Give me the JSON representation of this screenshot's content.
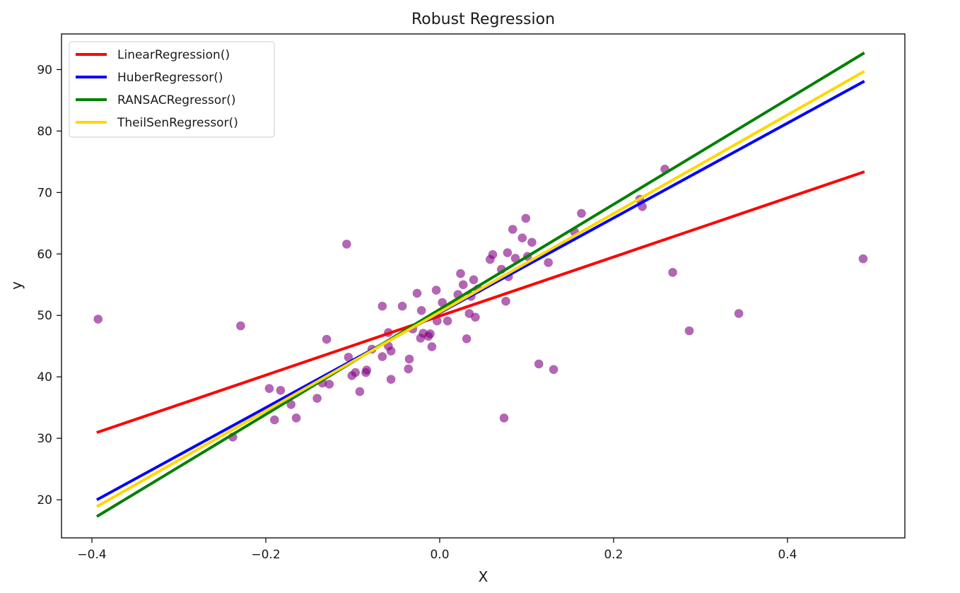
{
  "chart_data": {
    "type": "scatter",
    "title": "Robust Regression",
    "xlabel": "X",
    "ylabel": "y",
    "xlim": [
      -0.435,
      0.535
    ],
    "ylim": [
      13.8,
      95.8
    ],
    "xticks": [
      -0.4,
      -0.2,
      0.0,
      0.2,
      0.4
    ],
    "xtick_labels": [
      "−0.4",
      "−0.2",
      "0.0",
      "0.2",
      "0.4"
    ],
    "yticks": [
      20,
      30,
      40,
      50,
      60,
      70,
      80,
      90
    ],
    "ytick_labels": [
      "20",
      "30",
      "40",
      "50",
      "60",
      "70",
      "80",
      "90"
    ],
    "legend_position": "top-left",
    "scatter": {
      "color": "#800080",
      "opacity": 0.6,
      "points": [
        [
          -0.393,
          49.4
        ],
        [
          -0.229,
          48.3
        ],
        [
          -0.107,
          61.6
        ],
        [
          -0.238,
          30.2
        ],
        [
          -0.196,
          38.1
        ],
        [
          -0.183,
          37.8
        ],
        [
          -0.19,
          33.0
        ],
        [
          -0.171,
          35.5
        ],
        [
          -0.165,
          33.3
        ],
        [
          -0.141,
          36.5
        ],
        [
          -0.13,
          46.1
        ],
        [
          -0.127,
          38.8
        ],
        [
          -0.135,
          39.0
        ],
        [
          -0.105,
          43.2
        ],
        [
          -0.101,
          40.2
        ],
        [
          -0.097,
          40.7
        ],
        [
          -0.092,
          37.6
        ],
        [
          -0.085,
          40.7
        ],
        [
          -0.084,
          41.1
        ],
        [
          -0.078,
          44.5
        ],
        [
          -0.066,
          51.5
        ],
        [
          -0.066,
          43.3
        ],
        [
          -0.059,
          47.2
        ],
        [
          -0.059,
          45.0
        ],
        [
          -0.056,
          44.2
        ],
        [
          -0.056,
          39.6
        ],
        [
          -0.043,
          51.5
        ],
        [
          -0.035,
          42.9
        ],
        [
          -0.036,
          41.3
        ],
        [
          -0.031,
          47.8
        ],
        [
          -0.026,
          53.6
        ],
        [
          -0.021,
          50.8
        ],
        [
          -0.019,
          47.1
        ],
        [
          -0.022,
          46.3
        ],
        [
          -0.011,
          47.0
        ],
        [
          -0.013,
          46.6
        ],
        [
          -0.009,
          44.9
        ],
        [
          -0.004,
          54.1
        ],
        [
          -0.003,
          49.1
        ],
        [
          0.003,
          52.1
        ],
        [
          0.009,
          49.1
        ],
        [
          0.021,
          53.4
        ],
        [
          0.024,
          56.8
        ],
        [
          0.027,
          55.0
        ],
        [
          0.031,
          46.2
        ],
        [
          0.034,
          50.3
        ],
        [
          0.036,
          53.1
        ],
        [
          0.039,
          55.8
        ],
        [
          0.041,
          49.7
        ],
        [
          0.044,
          54.3
        ],
        [
          0.058,
          59.1
        ],
        [
          0.061,
          59.9
        ],
        [
          0.071,
          57.5
        ],
        [
          0.076,
          52.3
        ],
        [
          0.078,
          60.2
        ],
        [
          0.079,
          56.3
        ],
        [
          0.084,
          64.0
        ],
        [
          0.087,
          59.3
        ],
        [
          0.095,
          62.6
        ],
        [
          0.099,
          65.8
        ],
        [
          0.101,
          59.6
        ],
        [
          0.106,
          61.9
        ],
        [
          0.114,
          42.1
        ],
        [
          0.125,
          58.6
        ],
        [
          0.131,
          41.2
        ],
        [
          0.074,
          33.3
        ],
        [
          0.155,
          63.6
        ],
        [
          0.163,
          66.6
        ],
        [
          0.233,
          67.7
        ],
        [
          0.23,
          68.9
        ],
        [
          0.259,
          73.8
        ],
        [
          0.268,
          57.0
        ],
        [
          0.287,
          47.5
        ],
        [
          0.344,
          50.3
        ],
        [
          0.487,
          59.2
        ]
      ]
    },
    "series": [
      {
        "name": "LinearRegression()",
        "color": "#ff0000",
        "x": [
          -0.393,
          0.487
        ],
        "y": [
          31.0,
          73.3
        ]
      },
      {
        "name": "HuberRegressor()",
        "color": "#0000ff",
        "x": [
          -0.393,
          0.487
        ],
        "y": [
          20.1,
          88.0
        ]
      },
      {
        "name": "RANSACRegressor()",
        "color": "#008000",
        "x": [
          -0.393,
          0.487
        ],
        "y": [
          17.4,
          92.6
        ]
      },
      {
        "name": "TheilSenRegressor()",
        "color": "#ffd700",
        "x": [
          -0.393,
          0.487
        ],
        "y": [
          19.0,
          89.6
        ]
      }
    ]
  }
}
